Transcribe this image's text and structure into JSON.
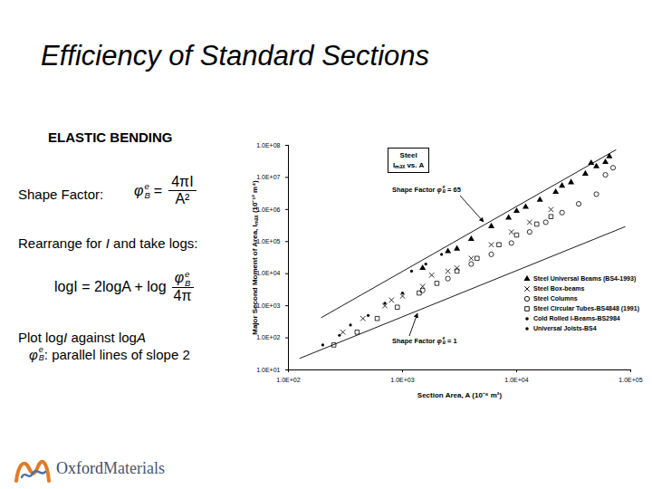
{
  "slide": {
    "title": "Efficiency of Standard Sections",
    "heading": "ELASTIC BENDING",
    "symbol": {
      "base": "φ",
      "sub": "B",
      "sup": "e"
    },
    "shape_factor": {
      "label": "Shape Factor:",
      "equals": "=",
      "numerator": "4πI",
      "denominator": "A²"
    },
    "rearrange": [
      "Rearrange for ",
      "I",
      " and take logs:"
    ],
    "log_formula": {
      "text": "logI = 2logA + log",
      "denominator": "4π"
    },
    "plot_note": [
      "Plot  log",
      "I",
      "  against  log",
      "A"
    ],
    "parallel_note": ": parallel lines of slope 2",
    "logo": [
      "Oxford",
      "Materials"
    ]
  },
  "chart_data": {
    "type": "scatter",
    "title": "Steel",
    "subtitle": "Iₘₐₓ vs. A",
    "x_label": "Section Area, A (10⁻⁶ m²)",
    "y_label": "Major Second Moment of Area, Iₘₐₓ (10⁻¹² m⁴)",
    "log": true,
    "xlim": [
      100,
      100000
    ],
    "ylim": [
      10,
      100000000
    ],
    "xticks": [
      {
        "value": 100,
        "label": "1.0E+02"
      },
      {
        "value": 1000,
        "label": "1.0E+03"
      },
      {
        "value": 10000,
        "label": "1.0E+04"
      },
      {
        "value": 100000,
        "label": "1.0E+05"
      }
    ],
    "yticks": [
      {
        "value": 10,
        "label": "1.0E+01"
      },
      {
        "value": 100,
        "label": "1.0E+02"
      },
      {
        "value": 1000,
        "label": "1.0E+03"
      },
      {
        "value": 10000,
        "label": "1.0E+04"
      },
      {
        "value": 100000,
        "label": "1.0E+05"
      },
      {
        "value": 1000000,
        "label": "1.0E+06"
      },
      {
        "value": 10000000,
        "label": "1.0E+07"
      },
      {
        "value": 100000000,
        "label": "1.0E+08"
      }
    ],
    "series": [
      {
        "name": "Steel Universal Beams (BS4-1993)",
        "marker": "triangle",
        "color": "#000000",
        "x": [
          1500,
          2500,
          3000,
          4000,
          6000,
          8500,
          10000,
          12000,
          16000,
          22000,
          25000,
          30000,
          40000,
          45000,
          50000,
          60000,
          65000
        ],
        "values": [
          15000,
          50000,
          60000,
          120000,
          300000,
          550000,
          900000,
          1200000,
          2000000,
          3500000,
          5500000,
          7000000,
          13000000,
          28000000,
          22000000,
          30000000,
          45000000
        ]
      },
      {
        "name": "Steel Box-beams",
        "marker": "x",
        "color": "#000000",
        "x": [
          300,
          450,
          700,
          800,
          1000,
          1500,
          1800,
          2500,
          3000,
          4000,
          6000,
          9000,
          13000,
          20000
        ],
        "values": [
          150,
          400,
          1000,
          1500,
          2000,
          4000,
          9000,
          12000,
          15000,
          30000,
          80000,
          200000,
          400000,
          1000000
        ]
      },
      {
        "name": "Steel Columns",
        "marker": "circle",
        "color": "#000000",
        "x": [
          1500,
          2500,
          4000,
          6000,
          9000,
          13000,
          18000,
          25000,
          35000,
          50000,
          60000,
          70000
        ],
        "values": [
          3000,
          7000,
          20000,
          40000,
          90000,
          200000,
          400000,
          800000,
          1500000,
          3000000,
          12000000,
          20000000
        ]
      },
      {
        "name": "Steel Circular Tubes-BS4848 (1991)",
        "marker": "square",
        "color": "#000000",
        "x": [
          250,
          400,
          600,
          900,
          1400,
          2000,
          3000,
          4500,
          7000,
          10000,
          15000,
          20000
        ],
        "values": [
          60,
          150,
          400,
          900,
          2500,
          5000,
          12000,
          30000,
          80000,
          160000,
          350000,
          600000
        ]
      },
      {
        "name": "Cold Rolled I-Beams-BS2984",
        "marker": "dot",
        "color": "#000000",
        "x": [
          200,
          280,
          350,
          500,
          700,
          1000
        ],
        "values": [
          60,
          120,
          250,
          500,
          1200,
          2500
        ]
      },
      {
        "name": "Universal Joists-BS4",
        "marker": "dot",
        "color": "#000000",
        "x": [
          1200,
          1600,
          2200
        ],
        "values": [
          12000,
          20000,
          40000
        ]
      }
    ],
    "reference_lines": [
      {
        "label": "Shape Factor",
        "equals": "=",
        "label_value": 65,
        "color": "#000000",
        "x": [
          195,
          74000
        ],
        "values": [
          430,
          72000000
        ]
      },
      {
        "label": "Shape Factor",
        "equals": "=",
        "label_value": 1,
        "color": "#000000",
        "x": [
          126,
          89000
        ],
        "values": [
          23,
          290000
        ]
      }
    ]
  }
}
